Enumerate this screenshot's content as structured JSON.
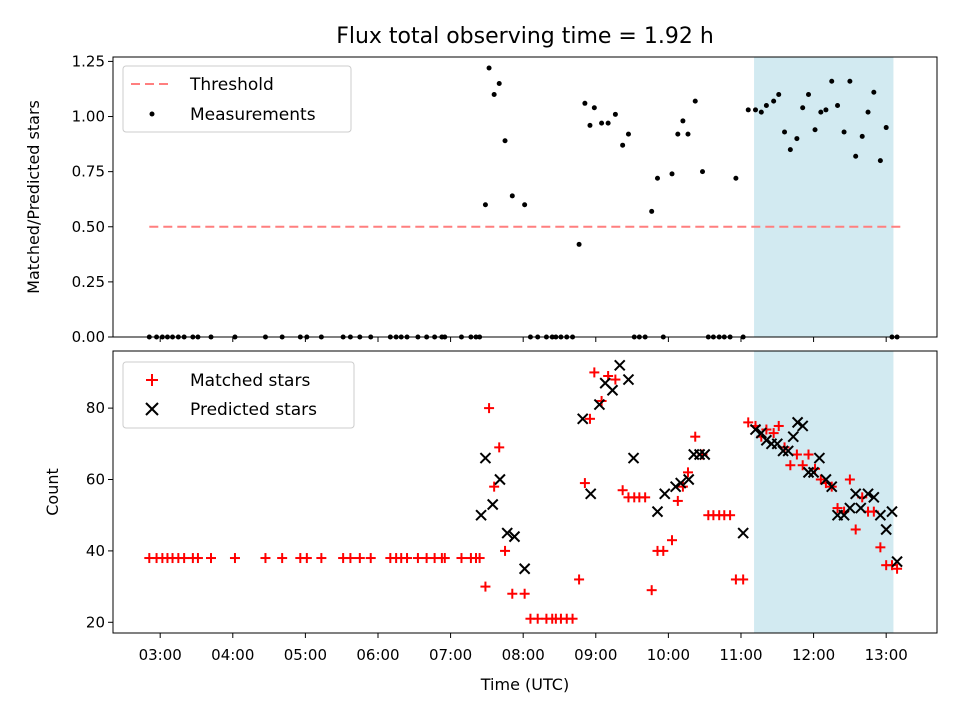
{
  "figure_title": "Flux total observing time = 1.92 h",
  "chart_data": [
    {
      "type": "scatter",
      "panel": "top",
      "title": "Flux total observing time = 1.92 h",
      "xlabel": "",
      "ylabel": "Matched/Predicted stars",
      "xlim": [
        2.35,
        13.7
      ],
      "ylim": [
        0,
        1.27
      ],
      "yticks": [
        0,
        0.25,
        0.5,
        0.75,
        1.0,
        1.25
      ],
      "ytick_labels": [
        "0.00",
        "0.25",
        "0.50",
        "0.75",
        "1.00",
        "1.25"
      ],
      "legend_position": "top-left",
      "shaded_interval_hours": [
        11.18,
        13.1
      ],
      "shade_color": "#add8e6",
      "threshold": {
        "name": "Threshold",
        "y": 0.5,
        "x_range": [
          2.85,
          13.2
        ],
        "color": "#ff7f7f"
      },
      "series": [
        {
          "name": "Measurements",
          "color": "#000000",
          "marker": "dot",
          "x": [
            2.85,
            2.95,
            3.03,
            3.1,
            3.17,
            3.25,
            3.33,
            3.45,
            3.52,
            3.7,
            4.03,
            4.45,
            4.68,
            4.93,
            5.02,
            5.22,
            5.52,
            5.62,
            5.75,
            5.9,
            6.17,
            6.25,
            6.32,
            6.4,
            6.55,
            6.67,
            6.78,
            6.88,
            6.92,
            7.15,
            7.28,
            7.35,
            7.4,
            7.48,
            7.53,
            7.6,
            7.67,
            7.75,
            7.85,
            8.02,
            8.1,
            8.2,
            8.32,
            8.4,
            8.45,
            8.52,
            8.6,
            8.68,
            8.77,
            8.85,
            8.92,
            8.98,
            9.08,
            9.17,
            9.27,
            9.37,
            9.45,
            9.53,
            9.6,
            9.68,
            9.77,
            9.85,
            9.93,
            10.05,
            10.13,
            10.2,
            10.27,
            10.37,
            10.47,
            10.55,
            10.62,
            10.7,
            10.77,
            10.85,
            10.93,
            11.03,
            11.1,
            11.2,
            11.28,
            11.35,
            11.45,
            11.52,
            11.6,
            11.68,
            11.77,
            11.85,
            11.93,
            12.02,
            12.1,
            12.17,
            12.25,
            12.33,
            12.42,
            12.5,
            12.58,
            12.67,
            12.75,
            12.83,
            12.92,
            13.0,
            13.08,
            13.15
          ],
          "y": [
            0,
            0,
            0,
            0,
            0,
            0,
            0,
            0,
            0,
            0,
            0,
            0,
            0,
            0,
            0,
            0,
            0,
            0,
            0,
            0,
            0,
            0,
            0,
            0,
            0,
            0,
            0,
            0,
            0,
            0,
            0,
            0,
            0,
            0.6,
            1.22,
            1.1,
            1.15,
            0.89,
            0.64,
            0.6,
            0,
            0,
            0,
            0,
            0,
            0,
            0,
            0,
            0.42,
            1.06,
            0.96,
            1.04,
            0.97,
            0.97,
            1.01,
            0.87,
            0.92,
            0,
            0,
            0,
            0.57,
            0.72,
            0,
            0.74,
            0.92,
            0.98,
            0.92,
            1.07,
            0.75,
            0,
            0,
            0,
            0,
            0,
            0.72,
            0,
            1.03,
            1.03,
            1.02,
            1.05,
            1.07,
            1.1,
            0.93,
            0.85,
            0.9,
            1.04,
            1.1,
            0.94,
            1.02,
            1.03,
            1.16,
            1.05,
            0.93,
            1.16,
            0.82,
            0.91,
            1.02,
            1.11,
            0.8,
            0.95,
            0,
            0
          ]
        }
      ]
    },
    {
      "type": "scatter",
      "panel": "bottom",
      "title": "",
      "xlabel": "Time (UTC)",
      "ylabel": "Count",
      "xlim": [
        2.35,
        13.7
      ],
      "ylim": [
        17,
        96
      ],
      "yticks": [
        20,
        40,
        60,
        80
      ],
      "ytick_labels": [
        "20",
        "40",
        "60",
        "80"
      ],
      "xticks": [
        3,
        4,
        5,
        6,
        7,
        8,
        9,
        10,
        11,
        12,
        13
      ],
      "xtick_labels": [
        "03:00",
        "04:00",
        "05:00",
        "06:00",
        "07:00",
        "08:00",
        "09:00",
        "10:00",
        "11:00",
        "12:00",
        "13:00"
      ],
      "legend_position": "top-left",
      "shaded_interval_hours": [
        11.18,
        13.1
      ],
      "shade_color": "#add8e6",
      "series": [
        {
          "name": "Matched stars",
          "color": "#ff0000",
          "marker": "plus",
          "x": [
            2.85,
            2.95,
            3.03,
            3.1,
            3.17,
            3.25,
            3.33,
            3.45,
            3.52,
            3.7,
            4.03,
            4.45,
            4.68,
            4.93,
            5.02,
            5.22,
            5.52,
            5.62,
            5.75,
            5.9,
            6.17,
            6.25,
            6.32,
            6.4,
            6.55,
            6.67,
            6.78,
            6.88,
            6.92,
            7.15,
            7.28,
            7.35,
            7.4,
            7.48,
            7.53,
            7.6,
            7.67,
            7.75,
            7.85,
            8.02,
            8.1,
            8.2,
            8.32,
            8.4,
            8.45,
            8.52,
            8.6,
            8.68,
            8.77,
            8.85,
            8.92,
            8.98,
            9.08,
            9.17,
            9.27,
            9.37,
            9.45,
            9.53,
            9.6,
            9.68,
            9.77,
            9.85,
            9.93,
            10.05,
            10.13,
            10.2,
            10.27,
            10.37,
            10.47,
            10.55,
            10.62,
            10.7,
            10.77,
            10.85,
            10.93,
            11.03,
            11.1,
            11.2,
            11.28,
            11.35,
            11.45,
            11.52,
            11.6,
            11.68,
            11.77,
            11.85,
            11.93,
            12.02,
            12.1,
            12.17,
            12.25,
            12.33,
            12.42,
            12.5,
            12.58,
            12.67,
            12.75,
            12.83,
            12.92,
            13.0,
            13.08,
            13.15
          ],
          "y": [
            38,
            38,
            38,
            38,
            38,
            38,
            38,
            38,
            38,
            38,
            38,
            38,
            38,
            38,
            38,
            38,
            38,
            38,
            38,
            38,
            38,
            38,
            38,
            38,
            38,
            38,
            38,
            38,
            38,
            38,
            38,
            38,
            38,
            30,
            80,
            58,
            69,
            40,
            28,
            28,
            21,
            21,
            21,
            21,
            21,
            21,
            21,
            21,
            32,
            59,
            77,
            90,
            82,
            89,
            88,
            57,
            55,
            55,
            55,
            55,
            29,
            40,
            40,
            43,
            54,
            58,
            62,
            72,
            67,
            50,
            50,
            50,
            50,
            50,
            32,
            32,
            76,
            75,
            72,
            74,
            73,
            75,
            69,
            64,
            67,
            64,
            67,
            63,
            60,
            59,
            58,
            52,
            51,
            60,
            46,
            55,
            51,
            51,
            41,
            36,
            36,
            35
          ]
        },
        {
          "name": "Predicted stars",
          "color": "#000000",
          "marker": "x",
          "x": [
            7.42,
            7.48,
            7.58,
            7.68,
            7.78,
            7.88,
            8.02,
            8.82,
            8.93,
            9.05,
            9.13,
            9.23,
            9.33,
            9.45,
            9.52,
            9.85,
            9.95,
            10.1,
            10.17,
            10.28,
            10.35,
            10.43,
            10.5,
            11.03,
            11.2,
            11.28,
            11.35,
            11.42,
            11.5,
            11.58,
            11.65,
            11.72,
            11.78,
            11.85,
            11.93,
            12.0,
            12.08,
            12.17,
            12.25,
            12.33,
            12.42,
            12.5,
            12.58,
            12.65,
            12.75,
            12.83,
            12.92,
            13.0,
            13.08,
            13.15
          ],
          "y": [
            50,
            66,
            53,
            60,
            45,
            44,
            35,
            77,
            56,
            81,
            87,
            85,
            92,
            88,
            66,
            51,
            56,
            58,
            59,
            60,
            67,
            67,
            67,
            45,
            74,
            73,
            71,
            70,
            70,
            68,
            68,
            72,
            76,
            75,
            62,
            62,
            66,
            60,
            58,
            50,
            50,
            52,
            56,
            52,
            56,
            55,
            50,
            46,
            51,
            37
          ]
        }
      ]
    }
  ]
}
